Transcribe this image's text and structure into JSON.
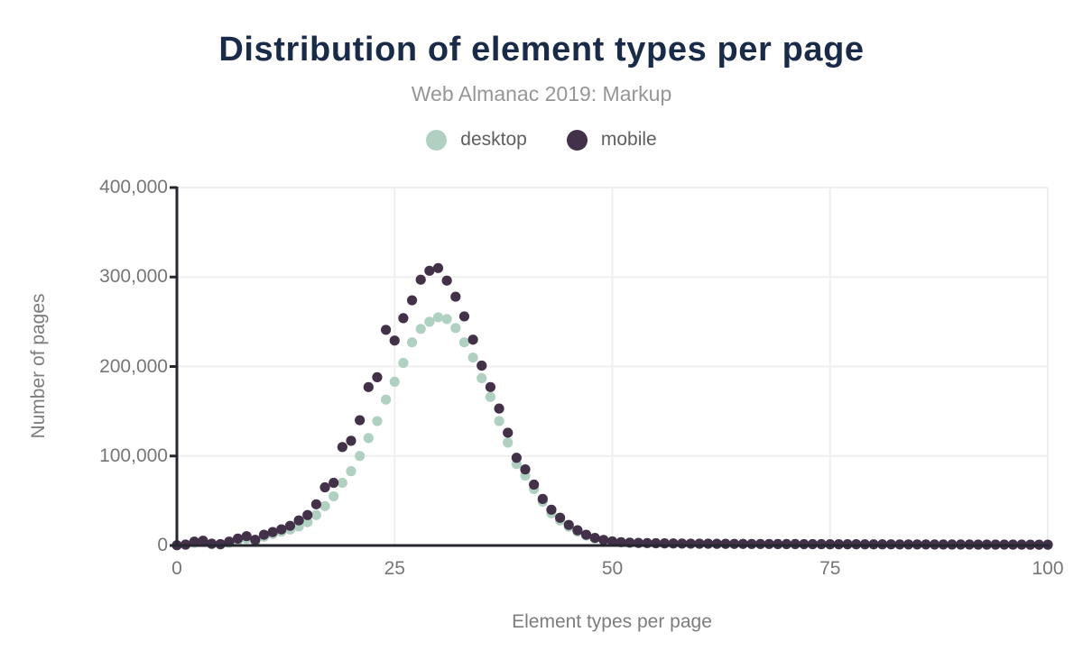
{
  "colors": {
    "title": "#1a2b49",
    "subtitle": "#969696",
    "tick_text": "#767676",
    "axis_line": "#26262e",
    "gridline": "#efefef",
    "desktop": "#b0d1c2",
    "mobile": "#433049"
  },
  "chart_data": {
    "type": "scatter",
    "title": "Distribution of element types per page",
    "subtitle": "Web Almanac 2019: Markup",
    "xlabel": "Element types per page",
    "ylabel": "Number of pages",
    "xlim": [
      0,
      100
    ],
    "ylim": [
      0,
      400000
    ],
    "grid": true,
    "legend_position": "top",
    "x_ticks": {
      "values": [
        0,
        25,
        50,
        75,
        100
      ],
      "labels": [
        "0",
        "25",
        "50",
        "75",
        "100"
      ]
    },
    "y_ticks": {
      "values": [
        0,
        100000,
        200000,
        300000,
        400000
      ],
      "labels": [
        "0",
        "100,000",
        "200,000",
        "300,000",
        "400,000"
      ]
    },
    "x_min": 0,
    "x_step": 1,
    "series": [
      {
        "name": "desktop",
        "color": "#b0d1c2",
        "values": [
          200,
          700,
          3000,
          3800,
          1400,
          1000,
          3000,
          5500,
          7500,
          4500,
          9800,
          12800,
          15400,
          17800,
          21200,
          26000,
          34000,
          44000,
          55000,
          70000,
          83000,
          100000,
          120000,
          139000,
          163000,
          183000,
          204000,
          227000,
          242000,
          250000,
          255000,
          253000,
          243000,
          227000,
          210000,
          187000,
          166000,
          139000,
          115000,
          91000,
          78000,
          63000,
          49000,
          36000,
          28000,
          21000,
          15500,
          11000,
          7800,
          5700,
          4300,
          3400,
          2900,
          2600,
          2400,
          2300,
          2100,
          2000,
          1900,
          1900,
          1800,
          1800,
          1700,
          1700,
          1600,
          1600,
          1500,
          1500,
          1500,
          1400,
          1400,
          1400,
          1300,
          1300,
          1300,
          1200,
          1200,
          1200,
          1200,
          1100,
          1100,
          1100,
          1100,
          1100,
          1000,
          1000,
          1000,
          1000,
          1000,
          900,
          900,
          900,
          900,
          900,
          900,
          800,
          800,
          800,
          800,
          800,
          800
        ]
      },
      {
        "name": "mobile",
        "color": "#433049",
        "values": [
          300,
          1000,
          4300,
          5300,
          2000,
          1500,
          4300,
          7700,
          10400,
          6300,
          12000,
          15000,
          18000,
          22000,
          28000,
          34000,
          46000,
          65000,
          70000,
          110000,
          117000,
          140000,
          177000,
          188000,
          241000,
          229000,
          254000,
          274000,
          297000,
          307000,
          310000,
          296000,
          278000,
          256000,
          230000,
          201000,
          177000,
          153000,
          126000,
          98000,
          85000,
          68000,
          52000,
          40000,
          31000,
          23000,
          17000,
          12000,
          8500,
          6200,
          4600,
          3700,
          3200,
          2900,
          2700,
          2500,
          2400,
          2300,
          2200,
          2100,
          2000,
          2000,
          1900,
          1900,
          1800,
          1800,
          1700,
          1700,
          1700,
          1600,
          1600,
          1600,
          1500,
          1500,
          1500,
          1400,
          1400,
          1400,
          1400,
          1300,
          1300,
          1300,
          1300,
          1200,
          1200,
          1200,
          1200,
          1100,
          1100,
          1100,
          1100,
          1100,
          1000,
          1000,
          1000,
          1000,
          1000,
          1000,
          900,
          900,
          900
        ]
      }
    ]
  }
}
